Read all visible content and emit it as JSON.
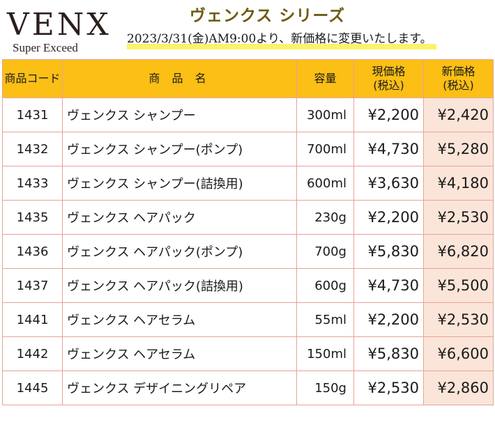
{
  "logo": {
    "brand": "VENX",
    "tagline": "Super Exceed"
  },
  "heading": {
    "series_title": "ヴェンクス シリーズ",
    "notice": "2023/3/31(金)AM9:00より、新価格に変更いたします。"
  },
  "table": {
    "headers": {
      "code": "商品コード",
      "name": "商 品 名",
      "volume": "容量",
      "current_price_line1": "現価格",
      "current_price_line2": "(税込)",
      "new_price_line1": "新価格",
      "new_price_line2": "(税込)"
    },
    "rows": [
      {
        "code": "1431",
        "name": "ヴェンクス シャンプー",
        "volume": "300ml",
        "current_price": "¥2,200",
        "new_price": "¥2,420"
      },
      {
        "code": "1432",
        "name": "ヴェンクス シャンプー(ポンプ)",
        "volume": "700ml",
        "current_price": "¥4,730",
        "new_price": "¥5,280"
      },
      {
        "code": "1433",
        "name": "ヴェンクス シャンプー(詰換用)",
        "volume": "600ml",
        "current_price": "¥3,630",
        "new_price": "¥4,180"
      },
      {
        "code": "1435",
        "name": "ヴェンクス ヘアパック",
        "volume": "230g",
        "current_price": "¥2,200",
        "new_price": "¥2,530"
      },
      {
        "code": "1436",
        "name": "ヴェンクス ヘアパック(ポンプ)",
        "volume": "700g",
        "current_price": "¥5,830",
        "new_price": "¥6,820"
      },
      {
        "code": "1437",
        "name": "ヴェンクス ヘアパック(詰換用)",
        "volume": "600g",
        "current_price": "¥4,730",
        "new_price": "¥5,500"
      },
      {
        "code": "1441",
        "name": "ヴェンクス ヘアセラム",
        "volume": "55ml",
        "current_price": "¥2,200",
        "new_price": "¥2,530"
      },
      {
        "code": "1442",
        "name": "ヴェンクス ヘアセラム",
        "volume": "150ml",
        "current_price": "¥5,830",
        "new_price": "¥6,600"
      },
      {
        "code": "1445",
        "name": "ヴェンクス デザイニングリペア",
        "volume": "150g",
        "current_price": "¥2,530",
        "new_price": "¥2,860"
      }
    ]
  },
  "colors": {
    "header_background": "#fbbf15",
    "new_price_background": "#fbe5d8",
    "grid_lines": "#e6a29a",
    "title_color": "#6e5a12",
    "notice_highlight": "#fbf36a"
  }
}
